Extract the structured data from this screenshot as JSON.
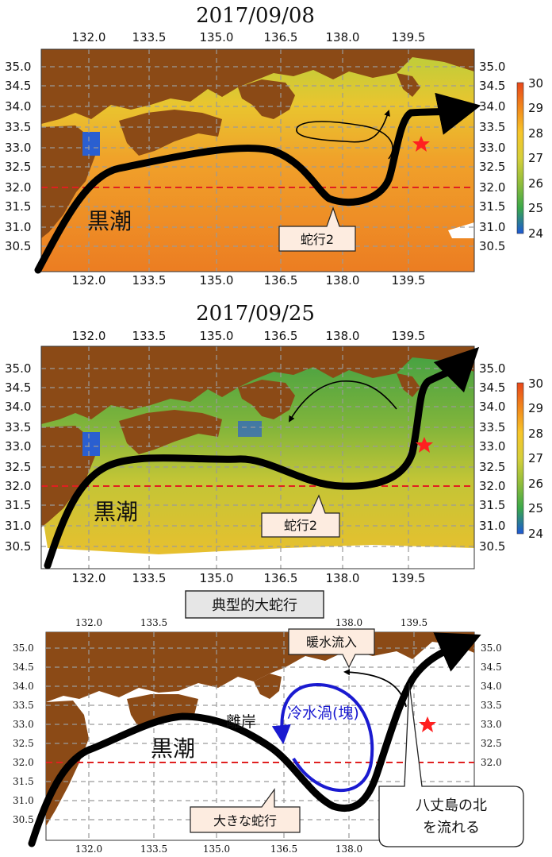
{
  "panel1": {
    "date": "2017/09/08",
    "label_kuroshio": "黒潮",
    "callout": "蛇行2"
  },
  "panel2": {
    "date": "2017/09/25",
    "label_kuroshio": "黒潮",
    "callout": "蛇行2"
  },
  "panel3": {
    "header": "典型的大蛇行",
    "label_kuroshio": "黒潮",
    "label_offshore": "離岸",
    "label_warm_inflow": "暖水流入",
    "label_cold_eddy": "冷水渦(塊)",
    "label_meander": "大きな蛇行",
    "label_hachijo_line1": "八丈島の北",
    "label_hachijo_line2": "を流れる"
  },
  "axes": {
    "lon_ticks": [
      "132.0",
      "133.5",
      "135.0",
      "136.5",
      "138.0",
      "139.5"
    ],
    "lat_ticks": [
      "35.0",
      "34.5",
      "34.0",
      "33.5",
      "33.0",
      "32.5",
      "32.0",
      "31.5",
      "31.0",
      "30.5"
    ]
  },
  "colorbar": {
    "ticks": [
      "30",
      "29",
      "28",
      "27",
      "26",
      "25",
      "24"
    ],
    "min": 24,
    "max": 30,
    "colors": [
      "#e8471a",
      "#f28a1c",
      "#f7c52a",
      "#d6cf3a",
      "#8fbd3b",
      "#3aa84a",
      "#1d58d6"
    ]
  },
  "colors": {
    "land": "#8b4a16",
    "stream": "#000000",
    "reference_line": "#e02020",
    "star": "#ff2020",
    "cold_eddy": "#1a1ad0",
    "callout_fill": "#fdece0"
  }
}
